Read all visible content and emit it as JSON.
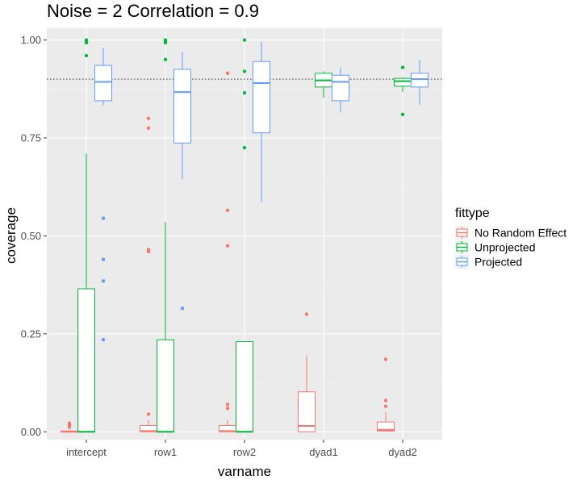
{
  "chart_data": {
    "type": "boxplot",
    "title": "Noise = 2 Correlation = 0.9",
    "xlabel": "varname",
    "ylabel": "coverage",
    "categories": [
      "intercept",
      "row1",
      "row2",
      "dyad1",
      "dyad2"
    ],
    "y_ticks": [
      "0.00",
      "0.25",
      "0.50",
      "0.75",
      "1.00"
    ],
    "ylim": [
      -0.02,
      1.03
    ],
    "reference_line": 0.9,
    "grid": true,
    "legend": {
      "title": "fittype",
      "position": "right",
      "entries": [
        "No Random Effect",
        "Unprojected",
        "Projected"
      ]
    },
    "colors": {
      "No Random Effect": "#F8766D",
      "Unprojected": "#00BA38",
      "Projected": "#619CFF",
      "panel": "#EBEBEB",
      "grid_major": "#FFFFFF",
      "grid_minor": "#F5F5F5"
    },
    "series": [
      {
        "name": "No Random Effect",
        "boxes": [
          {
            "category": "intercept",
            "min": 0.0,
            "q1": 0.0,
            "median": 0.0,
            "q3": 0.002,
            "max": 0.005,
            "outliers": [
              0.012,
              0.017,
              0.022
            ]
          },
          {
            "category": "row1",
            "min": 0.0,
            "q1": 0.0,
            "median": 0.002,
            "q3": 0.016,
            "max": 0.03,
            "outliers": [
              0.045,
              0.46,
              0.465,
              0.775,
              0.8
            ]
          },
          {
            "category": "row2",
            "min": 0.0,
            "q1": 0.0,
            "median": 0.002,
            "q3": 0.016,
            "max": 0.03,
            "outliers": [
              0.06,
              0.07,
              0.475,
              0.565,
              0.915
            ]
          },
          {
            "category": "dyad1",
            "min": 0.0,
            "q1": 0.0,
            "median": 0.015,
            "q3": 0.102,
            "max": 0.195,
            "outliers": [
              0.3
            ]
          },
          {
            "category": "dyad2",
            "min": 0.0,
            "q1": 0.002,
            "median": 0.005,
            "q3": 0.025,
            "max": 0.05,
            "outliers": [
              0.065,
              0.08,
              0.185
            ]
          }
        ]
      },
      {
        "name": "Unprojected",
        "boxes": [
          {
            "category": "intercept",
            "min": 0.0,
            "q1": 0.0,
            "median": 0.0,
            "q3": 0.365,
            "max": 0.71,
            "outliers": [
              0.96,
              0.993,
              0.997,
              1.0
            ]
          },
          {
            "category": "row1",
            "min": 0.0,
            "q1": 0.0,
            "median": 0.0,
            "q3": 0.235,
            "max": 0.535,
            "outliers": [
              0.95,
              0.993,
              0.997,
              1.0
            ]
          },
          {
            "category": "row2",
            "min": 0.0,
            "q1": 0.0,
            "median": 0.0,
            "q3": 0.23,
            "max": 0.23,
            "outliers": [
              0.725,
              0.865,
              0.92,
              1.0
            ]
          },
          {
            "category": "dyad1",
            "min": 0.853,
            "q1": 0.88,
            "median": 0.897,
            "q3": 0.915,
            "max": 0.92,
            "outliers": []
          },
          {
            "category": "dyad2",
            "min": 0.868,
            "q1": 0.882,
            "median": 0.895,
            "q3": 0.902,
            "max": 0.905,
            "outliers": [
              0.81,
              0.93
            ]
          }
        ]
      },
      {
        "name": "Projected",
        "boxes": [
          {
            "category": "intercept",
            "min": 0.833,
            "q1": 0.845,
            "median": 0.893,
            "q3": 0.935,
            "max": 0.98,
            "outliers": [
              0.235,
              0.385,
              0.44,
              0.545
            ]
          },
          {
            "category": "row1",
            "min": 0.645,
            "q1": 0.737,
            "median": 0.867,
            "q3": 0.925,
            "max": 0.97,
            "outliers": [
              0.315
            ]
          },
          {
            "category": "row2",
            "min": 0.585,
            "q1": 0.763,
            "median": 0.89,
            "q3": 0.945,
            "max": 0.995,
            "outliers": []
          },
          {
            "category": "dyad1",
            "min": 0.815,
            "q1": 0.845,
            "median": 0.893,
            "q3": 0.91,
            "max": 0.93,
            "outliers": []
          },
          {
            "category": "dyad2",
            "min": 0.835,
            "q1": 0.88,
            "median": 0.9,
            "q3": 0.915,
            "max": 0.95,
            "outliers": []
          }
        ]
      }
    ]
  }
}
